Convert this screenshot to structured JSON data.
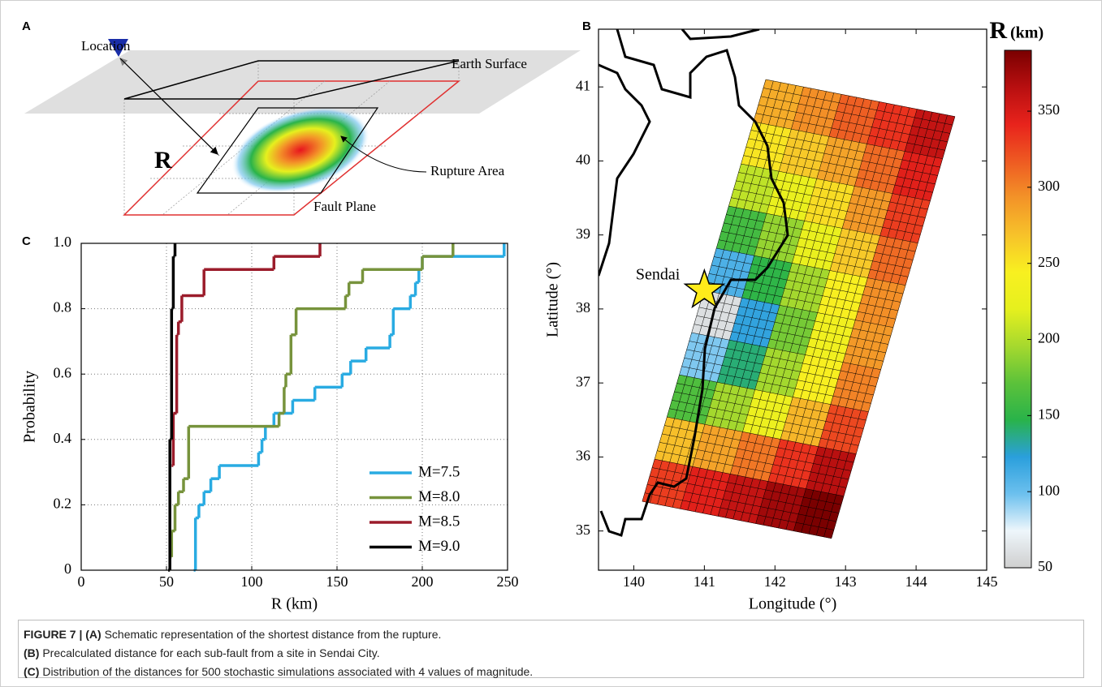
{
  "panel_labels": {
    "a": "A",
    "b": "B",
    "c": "C"
  },
  "schematic": {
    "location": "Location",
    "earth_surface": "Earth Surface",
    "distance": "R",
    "rupture_area": "Rupture Area",
    "fault_plane": "Fault Plane"
  },
  "chart_data": [
    {
      "type": "heatmap",
      "xlabel": "Longitude (°)",
      "ylabel": "Latitude (°)",
      "xlim": [
        139.5,
        145
      ],
      "ylim": [
        34.47,
        41.78
      ],
      "xticks": [
        140,
        141,
        142,
        143,
        144,
        145
      ],
      "yticks": [
        35,
        36,
        37,
        38,
        39,
        40,
        41
      ],
      "fault_corners": {
        "lon": [
          141.87,
          144.55,
          142.93,
          140.12
        ],
        "lat": [
          41.1,
          40.6,
          34.91,
          35.4
        ]
      },
      "values": [
        [
          280,
          295,
          315,
          335,
          360
        ],
        [
          250,
          265,
          285,
          310,
          345
        ],
        [
          205,
          225,
          255,
          290,
          330
        ],
        [
          160,
          190,
          225,
          265,
          310
        ],
        [
          110,
          150,
          195,
          245,
          295
        ],
        [
          60,
          120,
          180,
          235,
          290
        ],
        [
          95,
          140,
          195,
          245,
          300
        ],
        [
          165,
          195,
          230,
          275,
          325
        ],
        [
          270,
          285,
          305,
          335,
          365
        ],
        [
          330,
          345,
          360,
          375,
          390
        ]
      ],
      "site": {
        "label": "Sendai",
        "lon": 141.0,
        "lat": 38.25
      },
      "colorbar": {
        "symbol": "R",
        "unit": "(km)",
        "lim": [
          50,
          390
        ],
        "ticks": [
          50,
          100,
          150,
          200,
          250,
          300,
          350
        ],
        "colors": [
          "#cfcfcf",
          "#eef6fb",
          "#6cc0ee",
          "#2a9fdc",
          "#29b34a",
          "#5cc23a",
          "#a6d92e",
          "#e6f01e",
          "#f8f020",
          "#f7c22a",
          "#f39428",
          "#ee5a22",
          "#e8231c",
          "#b80f10",
          "#7a0000"
        ]
      }
    },
    {
      "type": "step",
      "xlabel": "R (km)",
      "ylabel": "Probability",
      "xlim": [
        0,
        250
      ],
      "ylim": [
        0,
        1
      ],
      "xticks": [
        0,
        50,
        100,
        150,
        200,
        250
      ],
      "yticks": [
        0,
        0.2,
        0.4,
        0.6,
        0.8,
        {
          "value": 1,
          "label": "1.0"
        }
      ],
      "grid": true,
      "legend": "lower right",
      "series": [
        {
          "name": "M=7.5",
          "color": "#29abe2",
          "x": [
            66,
            67,
            69,
            72,
            76,
            81,
            104,
            106,
            108,
            113,
            124,
            137,
            153,
            158,
            167,
            181,
            183,
            193,
            196,
            198,
            200,
            248
          ],
          "values": [
            0,
            0.16,
            0.2,
            0.24,
            0.28,
            0.32,
            0.36,
            0.4,
            0.44,
            0.48,
            0.52,
            0.56,
            0.6,
            0.64,
            0.68,
            0.72,
            0.8,
            0.84,
            0.88,
            0.92,
            0.96,
            1.0
          ]
        },
        {
          "name": "M=8.0",
          "color": "#77933c",
          "x": [
            52,
            53,
            55,
            57,
            60,
            63,
            116,
            119,
            120,
            123,
            126,
            155,
            157,
            165,
            200,
            218
          ],
          "values": [
            0.04,
            0.12,
            0.2,
            0.24,
            0.28,
            0.44,
            0.48,
            0.56,
            0.6,
            0.72,
            0.8,
            0.84,
            0.88,
            0.92,
            0.96,
            1.0
          ]
        },
        {
          "name": "M=8.5",
          "color": "#9b1c2b",
          "x": [
            53,
            54,
            56,
            57,
            59,
            72,
            113,
            140
          ],
          "values": [
            0.32,
            0.48,
            0.72,
            0.76,
            0.84,
            0.92,
            0.96,
            1.0
          ]
        },
        {
          "name": "M=9.0",
          "color": "#000000",
          "x": [
            51,
            52,
            53,
            54,
            55
          ],
          "values": [
            0,
            0.4,
            0.8,
            0.96,
            1.0
          ]
        }
      ]
    }
  ],
  "caption": {
    "figure_label": "FIGURE 7 |",
    "parts": [
      {
        "tag": "(A)",
        "text": "Schematic representation of the shortest distance from the rupture."
      },
      {
        "tag": "(B)",
        "text": "Precalculated distance for each sub-fault from a site in Sendai City."
      },
      {
        "tag": "(C)",
        "text": "Distribution of the distances for 500 stochastic simulations associated with 4 values of magnitude."
      }
    ]
  }
}
